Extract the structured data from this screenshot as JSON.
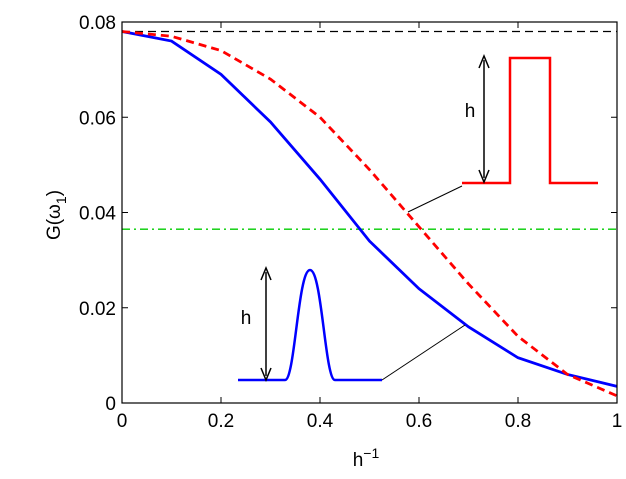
{
  "chart_data": {
    "type": "line",
    "xlabel": [
      "h",
      "−1"
    ],
    "ylabel": [
      "G(ω",
      "1",
      ")"
    ],
    "x": [
      0,
      0.1,
      0.2,
      0.3,
      0.4,
      0.5,
      0.6,
      0.7,
      0.8,
      0.9,
      1.0
    ],
    "series": [
      {
        "color": "#0000ff",
        "style": "solid",
        "values": [
          0.078,
          0.076,
          0.069,
          0.059,
          0.047,
          0.034,
          0.024,
          0.016,
          0.0095,
          0.006,
          0.0035
        ]
      },
      {
        "color": "#ff0000",
        "style": "dashed",
        "values": [
          0.078,
          0.077,
          0.074,
          0.068,
          0.06,
          0.049,
          0.037,
          0.025,
          0.014,
          0.006,
          0.0015
        ]
      }
    ],
    "hlines": [
      {
        "y": 0.078,
        "color": "#000000",
        "style": "dashed"
      },
      {
        "y": 0.0365,
        "color": "#00cc00",
        "style": "dashdot"
      }
    ],
    "annotations": [
      "h",
      "h"
    ],
    "xlim": [
      0,
      1
    ],
    "xticks": [
      0,
      0.2,
      0.4,
      0.6,
      0.8,
      1
    ],
    "ylim": [
      0,
      0.08
    ],
    "yticks": [
      0,
      0.02,
      0.04,
      0.06,
      0.08
    ]
  }
}
